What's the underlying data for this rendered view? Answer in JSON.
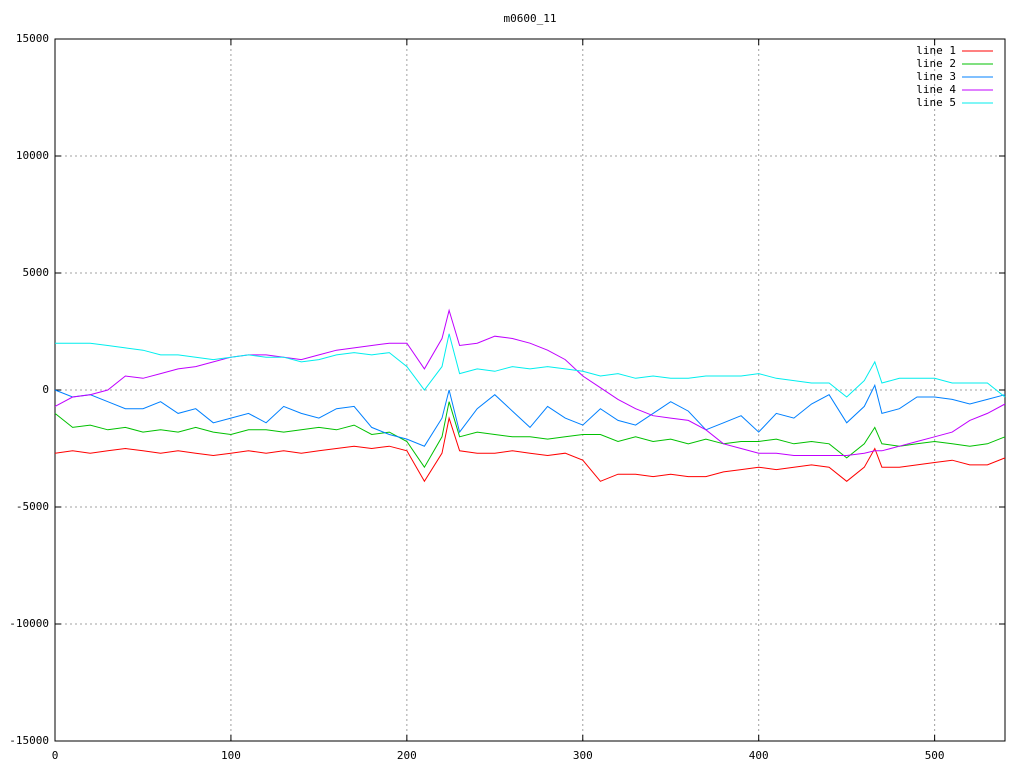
{
  "chart_data": {
    "type": "line",
    "title": "m0600_11",
    "x": [
      0,
      10,
      20,
      30,
      40,
      50,
      60,
      70,
      80,
      90,
      100,
      110,
      120,
      130,
      140,
      150,
      160,
      170,
      180,
      190,
      200,
      210,
      220,
      224,
      230,
      240,
      250,
      260,
      270,
      280,
      290,
      300,
      310,
      320,
      330,
      340,
      350,
      360,
      370,
      380,
      390,
      400,
      410,
      420,
      430,
      440,
      450,
      460,
      466,
      470,
      480,
      490,
      500,
      510,
      520,
      530,
      540
    ],
    "series": [
      {
        "name": "line 1",
        "color": "#ff0000",
        "values": [
          -2700,
          -2600,
          -2700,
          -2600,
          -2500,
          -2600,
          -2700,
          -2600,
          -2700,
          -2800,
          -2700,
          -2600,
          -2700,
          -2600,
          -2700,
          -2600,
          -2500,
          -2400,
          -2500,
          -2400,
          -2600,
          -3900,
          -2700,
          -1200,
          -2600,
          -2700,
          -2700,
          -2600,
          -2700,
          -2800,
          -2700,
          -3000,
          -3900,
          -3600,
          -3600,
          -3700,
          -3600,
          -3700,
          -3700,
          -3500,
          -3400,
          -3300,
          -3400,
          -3300,
          -3200,
          -3300,
          -3900,
          -3300,
          -2500,
          -3300,
          -3300,
          -3200,
          -3100,
          -3000,
          -3200,
          -3200,
          -2900
        ]
      },
      {
        "name": "line 2",
        "color": "#00c000",
        "values": [
          -1000,
          -1600,
          -1500,
          -1700,
          -1600,
          -1800,
          -1700,
          -1800,
          -1600,
          -1800,
          -1900,
          -1700,
          -1700,
          -1800,
          -1700,
          -1600,
          -1700,
          -1500,
          -1900,
          -1800,
          -2200,
          -3300,
          -2000,
          -500,
          -2000,
          -1800,
          -1900,
          -2000,
          -2000,
          -2100,
          -2000,
          -1900,
          -1900,
          -2200,
          -2000,
          -2200,
          -2100,
          -2300,
          -2100,
          -2300,
          -2200,
          -2200,
          -2100,
          -2300,
          -2200,
          -2300,
          -2900,
          -2300,
          -1600,
          -2300,
          -2400,
          -2300,
          -2200,
          -2300,
          -2400,
          -2300,
          -2000
        ]
      },
      {
        "name": "line 3",
        "color": "#0080ff",
        "values": [
          0,
          -300,
          -200,
          -500,
          -800,
          -800,
          -500,
          -1000,
          -800,
          -1400,
          -1200,
          -1000,
          -1400,
          -700,
          -1000,
          -1200,
          -800,
          -700,
          -1600,
          -1900,
          -2100,
          -2400,
          -1200,
          0,
          -1800,
          -800,
          -200,
          -900,
          -1600,
          -700,
          -1200,
          -1500,
          -800,
          -1300,
          -1500,
          -1000,
          -500,
          -900,
          -1700,
          -1400,
          -1100,
          -1800,
          -1000,
          -1200,
          -600,
          -200,
          -1400,
          -700,
          200,
          -1000,
          -800,
          -300,
          -300,
          -400,
          -600,
          -400,
          -200
        ]
      },
      {
        "name": "line 4",
        "color": "#c000ff",
        "values": [
          -700,
          -300,
          -200,
          0,
          600,
          500,
          700,
          900,
          1000,
          1200,
          1400,
          1500,
          1500,
          1400,
          1300,
          1500,
          1700,
          1800,
          1900,
          2000,
          2000,
          900,
          2200,
          3400,
          1900,
          2000,
          2300,
          2200,
          2000,
          1700,
          1300,
          600,
          100,
          -400,
          -800,
          -1100,
          -1200,
          -1300,
          -1700,
          -2300,
          -2500,
          -2700,
          -2700,
          -2800,
          -2800,
          -2800,
          -2800,
          -2700,
          -2600,
          -2600,
          -2400,
          -2200,
          -2000,
          -1800,
          -1300,
          -1000,
          -600
        ]
      },
      {
        "name": "line 5",
        "color": "#00eeee",
        "values": [
          2000,
          2000,
          2000,
          1900,
          1800,
          1700,
          1500,
          1500,
          1400,
          1300,
          1400,
          1500,
          1400,
          1400,
          1200,
          1300,
          1500,
          1600,
          1500,
          1600,
          1000,
          0,
          1000,
          2400,
          700,
          900,
          800,
          1000,
          900,
          1000,
          900,
          800,
          600,
          700,
          500,
          600,
          500,
          500,
          600,
          600,
          600,
          700,
          500,
          400,
          300,
          300,
          -300,
          400,
          1200,
          300,
          500,
          500,
          500,
          300,
          300,
          300,
          -300
        ]
      }
    ],
    "xlim": [
      0,
      540
    ],
    "ylim": [
      -15000,
      15000
    ],
    "xticks": [
      0,
      100,
      200,
      300,
      400,
      500
    ],
    "yticks": [
      -15000,
      -10000,
      -5000,
      0,
      5000,
      10000,
      15000
    ],
    "grid": true,
    "legend": "top-right"
  }
}
